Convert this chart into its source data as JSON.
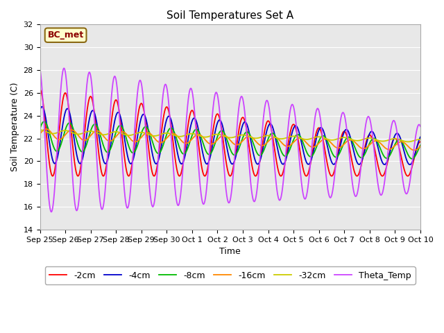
{
  "title": "Soil Temperatures Set A",
  "xlabel": "Time",
  "ylabel": "Soil Temperature (C)",
  "ylim": [
    14,
    32
  ],
  "yticks": [
    14,
    16,
    18,
    20,
    22,
    24,
    26,
    28,
    30,
    32
  ],
  "background_color": "#e8e8e8",
  "annotation_text": "BC_met",
  "annotation_bg": "#ffffcc",
  "annotation_border": "#8b6914",
  "annotation_text_color": "#8b0000",
  "series_colors": {
    "-2cm": "#ff0000",
    "-4cm": "#0000cc",
    "-8cm": "#00bb00",
    "-16cm": "#ff8800",
    "-32cm": "#cccc00",
    "Theta_Temp": "#cc44ff"
  },
  "x_labels": [
    "Sep 25",
    "Sep 26",
    "Sep 27",
    "Sep 28",
    "Sep 29",
    "Sep 30",
    "Oct 1",
    "Oct 2",
    "Oct 3",
    "Oct 4",
    "Oct 5",
    "Oct 6",
    "Oct 7",
    "Oct 8",
    "Oct 9",
    "Oct 10"
  ],
  "figsize": [
    6.4,
    4.8
  ],
  "dpi": 100
}
